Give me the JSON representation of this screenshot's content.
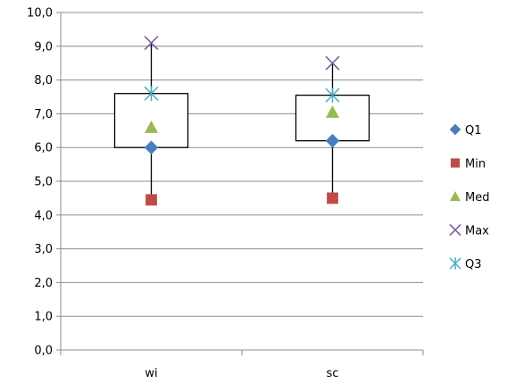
{
  "chart_data": {
    "type": "scatter",
    "categories": [
      "wi",
      "sc"
    ],
    "y_tick_labels": [
      "0,0",
      "1,0",
      "2,0",
      "3,0",
      "4,0",
      "5,0",
      "6,0",
      "7,0",
      "8,0",
      "9,0",
      "10,0"
    ],
    "ylim": [
      0,
      10
    ],
    "grid": true,
    "legend_position": "right",
    "box_from_series": [
      "Q1",
      "Q3"
    ],
    "whisker_from_series": [
      "Min",
      "Max"
    ],
    "series": [
      {
        "name": "Q1",
        "marker": "diamond",
        "color": "#4A7EBB",
        "values": [
          6.0,
          6.2
        ]
      },
      {
        "name": "Min",
        "marker": "square",
        "color": "#BE4B48",
        "values": [
          4.45,
          4.5
        ]
      },
      {
        "name": "Med",
        "marker": "triangle",
        "color": "#98B954",
        "values": [
          6.6,
          7.05
        ]
      },
      {
        "name": "Max",
        "marker": "x",
        "color": "#7D60A0",
        "values": [
          9.1,
          8.5
        ]
      },
      {
        "name": "Q3",
        "marker": "star",
        "color": "#46AAC5",
        "values": [
          7.6,
          7.55
        ]
      }
    ]
  }
}
